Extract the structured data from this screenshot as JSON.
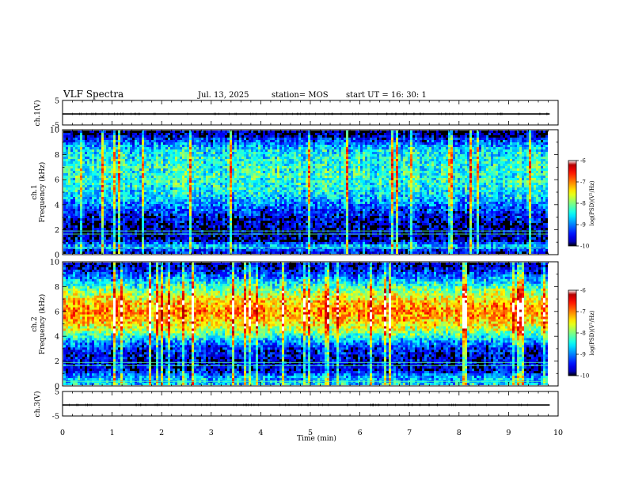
{
  "header": {
    "title": "VLF Spectra",
    "date": "Jul. 13, 2025",
    "station": "station= MOS",
    "start": "start UT = 16: 30: 1"
  },
  "chart_data": [
    {
      "type": "line",
      "panel": "ch1-voltage",
      "ylabel": "ch.1(V)",
      "ylim": [
        -5,
        5
      ],
      "yticklabels": [
        "5",
        "-5"
      ],
      "xlim": [
        0,
        10
      ],
      "series": [
        {
          "x": [
            0,
            9.83
          ],
          "y": [
            -0.5,
            -0.5
          ]
        }
      ]
    },
    {
      "type": "heatmap",
      "panel": "ch1-spectrogram",
      "ylabel": "ch.1\nFrequency (kHz)",
      "xlim": [
        0,
        10
      ],
      "ylim": [
        0,
        10
      ],
      "data_xlim": [
        0,
        9.83
      ],
      "yticklabels": [
        "0",
        "2",
        "4",
        "6",
        "8",
        "10"
      ],
      "colorbar": {
        "label": "log(PSD)(V²/Hz)",
        "range": [
          -10,
          -6
        ],
        "ticks": [
          "-6",
          "-7",
          "-8",
          "-9",
          "-10"
        ]
      },
      "profile": [
        {
          "f": 0.2,
          "level": -9.5
        },
        {
          "f": 0.6,
          "level": -8.6
        },
        {
          "f": 1.0,
          "level": -9.6
        },
        {
          "f": 1.6,
          "level": -9.8
        },
        {
          "f": 2.5,
          "level": -9.7
        },
        {
          "f": 3.5,
          "level": -9.3
        },
        {
          "f": 4.5,
          "level": -8.7
        },
        {
          "f": 5.5,
          "level": -8.4
        },
        {
          "f": 6.5,
          "level": -8.3
        },
        {
          "f": 7.5,
          "level": -8.4
        },
        {
          "f": 8.5,
          "level": -8.6
        },
        {
          "f": 9.3,
          "level": -9.4
        },
        {
          "f": 9.8,
          "level": -9.9
        }
      ],
      "lines_khz": [
        0.5,
        1.6,
        1.85
      ]
    },
    {
      "type": "heatmap",
      "panel": "ch2-spectrogram",
      "ylabel": "ch.2\nFrequency (kHz)",
      "xlim": [
        0,
        10
      ],
      "ylim": [
        0,
        10
      ],
      "data_xlim": [
        0,
        9.83
      ],
      "yticklabels": [
        "0",
        "2",
        "4",
        "6",
        "8",
        "10"
      ],
      "colorbar": {
        "label": "log(PSD)(V²/Hz)",
        "range": [
          -10,
          -6
        ],
        "ticks": [
          "-6",
          "-7",
          "-8",
          "-9",
          "-10"
        ]
      },
      "profile": [
        {
          "f": 0.2,
          "level": -8.6
        },
        {
          "f": 0.7,
          "level": -8.9
        },
        {
          "f": 1.2,
          "level": -9.6
        },
        {
          "f": 2.0,
          "level": -9.6
        },
        {
          "f": 3.0,
          "level": -9.4
        },
        {
          "f": 3.8,
          "level": -8.6
        },
        {
          "f": 4.5,
          "level": -7.8
        },
        {
          "f": 5.2,
          "level": -7.3
        },
        {
          "f": 6.0,
          "level": -7.0
        },
        {
          "f": 6.8,
          "level": -7.3
        },
        {
          "f": 7.5,
          "level": -7.8
        },
        {
          "f": 8.3,
          "level": -8.5
        },
        {
          "f": 9.0,
          "level": -9.2
        },
        {
          "f": 9.7,
          "level": -9.7
        }
      ],
      "lines_khz": [
        0.3,
        1.6,
        1.85
      ]
    },
    {
      "type": "line",
      "panel": "ch3-voltage",
      "ylabel": "ch.3(V)",
      "ylim": [
        -5,
        5
      ],
      "yticklabels": [
        "5",
        "-5"
      ],
      "xlim": [
        0,
        10
      ],
      "series": [
        {
          "x": [
            0,
            9.83
          ],
          "y": [
            -0.5,
            -0.5
          ]
        }
      ]
    }
  ],
  "xaxis": {
    "label": "Time (min)",
    "ticks": [
      "0",
      "1",
      "2",
      "3",
      "4",
      "5",
      "6",
      "7",
      "8",
      "9",
      "10"
    ]
  }
}
